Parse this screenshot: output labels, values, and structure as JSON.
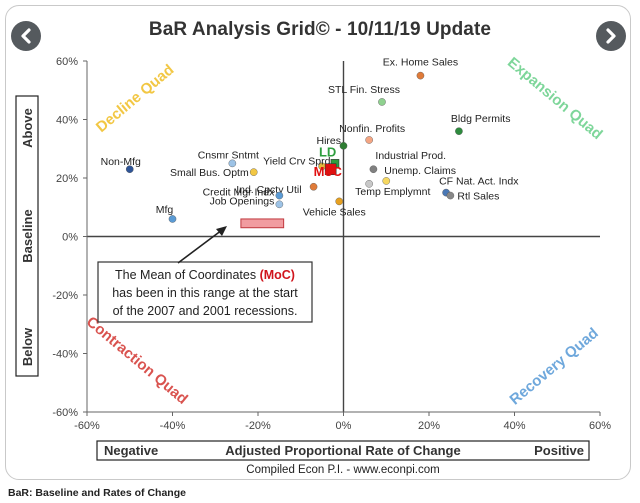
{
  "nav": {
    "prev_icon": "chevron-left-icon",
    "next_icon": "chevron-right-icon"
  },
  "caption": "BaR: Baseline and Rates of Change",
  "chart_data": {
    "type": "scatter",
    "title": "BaR Analysis Grid© - 10/11/19 Update",
    "xlabel": "Adjusted Proportional Rate of Change",
    "xlabel_left": "Negative",
    "xlabel_right": "Positive",
    "ylabel_top": "Above",
    "ylabel_mid": "Baseline",
    "ylabel_bottom": "Below",
    "source": "Compiled Econ P.I. - www.econpi.com",
    "xlim": [
      -60,
      60
    ],
    "ylim": [
      -60,
      60
    ],
    "xticks": [
      -60,
      -40,
      -20,
      0,
      20,
      40,
      60
    ],
    "yticks": [
      -60,
      -40,
      -20,
      0,
      20,
      40,
      60
    ],
    "tick_format": "percent",
    "grid": false,
    "quadrants": [
      {
        "label": "Decline Quad",
        "color": "#f2c744"
      },
      {
        "label": "Expansion Quad",
        "color": "#7ed69a"
      },
      {
        "label": "Contraction Quad",
        "color": "#d9534f"
      },
      {
        "label": "Recovery Quad",
        "color": "#6fa8dc"
      }
    ],
    "points": [
      {
        "label": "Ex. Home Sales",
        "x": 18,
        "y": 55,
        "color": "#e07b39"
      },
      {
        "label": "STL Fin. Stress",
        "x": 9,
        "y": 46,
        "color": "#8fd18f"
      },
      {
        "label": "Bldg Permits",
        "x": 27,
        "y": 36,
        "color": "#2e8b3e"
      },
      {
        "label": "Nonfin. Profits",
        "x": 6,
        "y": 33,
        "color": "#f4a582"
      },
      {
        "label": "Hires",
        "x": 0,
        "y": 31,
        "color": "#2e7d32"
      },
      {
        "label": "Industrial Prod.",
        "x": 7,
        "y": 23,
        "color": "#808080"
      },
      {
        "label": "Unemp. Claims",
        "x": 10,
        "y": 19,
        "color": "#f6d860"
      },
      {
        "label": "Temp Emplymnt",
        "x": 6,
        "y": 18,
        "color": "#c8c8c8"
      },
      {
        "label": "CF Nat. Act. Indx",
        "x": 24,
        "y": 15,
        "color": "#4a78b5"
      },
      {
        "label": "Rtl Sales",
        "x": 25,
        "y": 14,
        "color": "#888888"
      },
      {
        "label": "Non-Mfg",
        "x": -50,
        "y": 23,
        "color": "#2f5597"
      },
      {
        "label": "Cnsmr Sntmt",
        "x": -26,
        "y": 25,
        "color": "#9dc3e6"
      },
      {
        "label": "Small Bus. Optm",
        "x": -21,
        "y": 22,
        "color": "#f2c744"
      },
      {
        "label": "Yield Crv Sprd",
        "x": -5,
        "y": 24,
        "color": "#e6b83a"
      },
      {
        "label": "Ind. Cpcty Util",
        "x": -7,
        "y": 17,
        "color": "#e07b39"
      },
      {
        "label": "Credit Mgr Indx",
        "x": -15,
        "y": 14,
        "color": "#5b9bd5"
      },
      {
        "label": "Job Openings",
        "x": -15,
        "y": 11,
        "color": "#9dc3e6"
      },
      {
        "label": "Mfg",
        "x": -40,
        "y": 6,
        "color": "#5b9bd5"
      },
      {
        "label": "Vehicle Sales",
        "x": -1,
        "y": 12,
        "color": "#e6a020"
      },
      {
        "label": "LD",
        "x": -2,
        "y": 25,
        "color": "#2e9e3e",
        "marker": "square"
      },
      {
        "label": "MoC",
        "x": -3,
        "y": 23,
        "color": "#e01010",
        "marker": "square"
      }
    ],
    "moc_range": {
      "x": [
        -24,
        -14
      ],
      "y": [
        3,
        6
      ],
      "color": "#f19ca0"
    },
    "annotation": {
      "text_before": "The Mean of Coordinates ",
      "text_highlight": "(MoC)",
      "text_after": "has been in this range at the start",
      "line3": "of the 2007 and 2001 recessions."
    }
  }
}
